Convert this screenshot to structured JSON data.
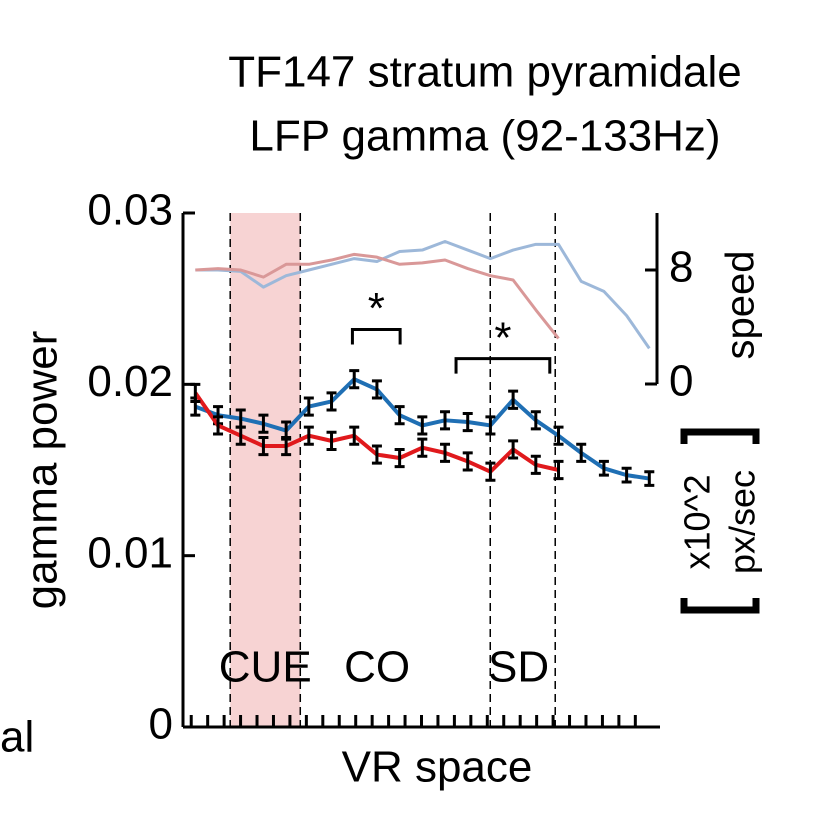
{
  "chart_data": {
    "type": "line",
    "title": [
      "TF147 stratum pyramidale",
      "LFP gamma (92-133Hz)"
    ],
    "ylabel": "gamma power",
    "xlabel": "VR space",
    "y2label": "speed",
    "y2unit": [
      "x10^2",
      "px/sec"
    ],
    "stray_text": "al",
    "x": [
      1.25,
      2.63,
      4.01,
      5.39,
      6.77,
      8.15,
      9.53,
      10.91,
      12.29,
      13.67,
      15.05,
      16.43,
      17.81,
      19.19,
      20.57,
      21.95,
      23.33,
      24.71,
      26.09,
      27.47,
      28.85
    ],
    "xlim": [
      0.5,
      29.5
    ],
    "xticks": [
      1,
      2,
      3,
      4,
      5,
      6,
      7,
      8,
      9,
      10,
      11,
      12,
      13,
      14,
      15,
      16,
      17,
      18,
      19,
      20,
      21,
      22,
      23,
      24,
      25,
      26,
      27,
      28
    ],
    "ylim": [
      0,
      0.03
    ],
    "yticks": [
      0,
      0.01,
      0.02,
      0.03
    ],
    "y2lim": [
      0,
      12
    ],
    "y2ticks": [
      0,
      8
    ],
    "series": [
      {
        "color": "#1f6fb4",
        "values": [
          0.0187,
          0.0182,
          0.018,
          0.0177,
          0.0173,
          0.0187,
          0.019,
          0.0203,
          0.0197,
          0.0182,
          0.0176,
          0.0179,
          0.0178,
          0.0176,
          0.0191,
          0.0179,
          0.017,
          0.016,
          0.0151,
          0.0147,
          0.0145
        ],
        "errors": [
          0.0005,
          0.0005,
          0.0005,
          0.0005,
          0.0005,
          0.0005,
          0.0005,
          0.0005,
          0.0005,
          0.0005,
          0.0005,
          0.0005,
          0.0005,
          0.0005,
          0.0005,
          0.0005,
          0.0005,
          0.0005,
          0.0004,
          0.0004,
          0.0004
        ]
      },
      {
        "color": "#e0191c",
        "values": [
          0.0195,
          0.0176,
          0.017,
          0.0164,
          0.0164,
          0.017,
          0.0167,
          0.017,
          0.0159,
          0.0157,
          0.0163,
          0.016,
          0.0155,
          0.0149,
          0.0162,
          0.0153,
          0.015,
          null,
          null,
          null,
          null
        ],
        "errors": [
          0.0005,
          0.0005,
          0.0005,
          0.0005,
          0.0005,
          0.0005,
          0.0005,
          0.0005,
          0.0005,
          0.0005,
          0.0005,
          0.0005,
          0.0005,
          0.0005,
          0.0005,
          0.0005,
          0.0005,
          null,
          null,
          null,
          null
        ]
      },
      {
        "color": "#9db8d9",
        "axis": "y2",
        "values": [
          8.0,
          8.0,
          7.9,
          6.8,
          7.6,
          8.0,
          8.4,
          8.8,
          8.6,
          9.3,
          9.4,
          10.0,
          9.4,
          8.8,
          9.4,
          9.8,
          9.8,
          7.2,
          6.5,
          4.8,
          2.5
        ]
      },
      {
        "color": "#d99898",
        "axis": "y2",
        "values": [
          8.0,
          8.1,
          8.0,
          7.5,
          8.4,
          8.4,
          8.7,
          9.1,
          8.9,
          8.4,
          8.5,
          8.7,
          8.1,
          7.6,
          7.3,
          5.2,
          3.2,
          null,
          null,
          null,
          null
        ]
      }
    ],
    "shaded_region": {
      "x": [
        3.37,
        7.63
      ],
      "color": "#f7d3d3"
    },
    "vlines": [
      3.37,
      7.63,
      19.18,
      23.13
    ],
    "annotations": [
      {
        "text": "CUE",
        "x": 5.5
      },
      {
        "text": "CO",
        "x": 12.3
      },
      {
        "text": "SD",
        "x": 20.9
      }
    ],
    "significance": [
      {
        "text": "*",
        "x": [
          10.8,
          13.7
        ],
        "y": 0.0232
      },
      {
        "text": "*",
        "x": [
          17.1,
          22.8
        ],
        "y": 0.0215
      }
    ]
  }
}
